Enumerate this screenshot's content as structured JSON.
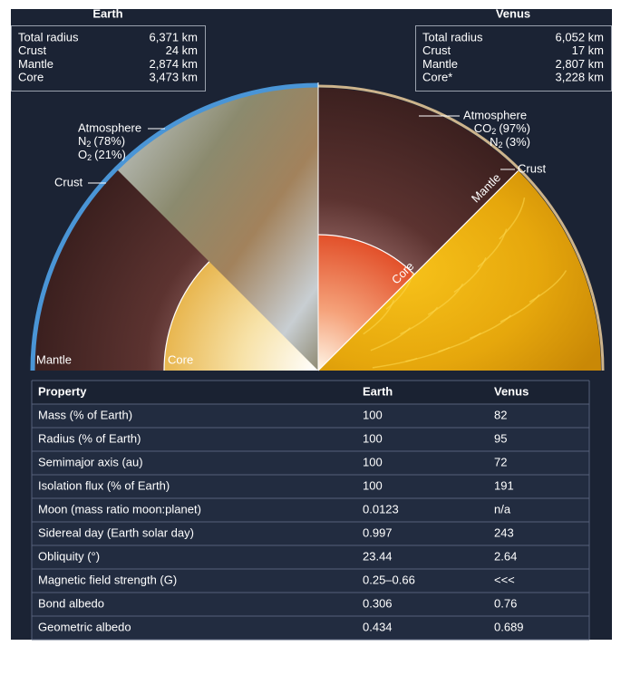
{
  "earth": {
    "title": "Earth",
    "stats": [
      [
        "Total radius",
        "6,371 km"
      ],
      [
        "Crust",
        "24 km"
      ],
      [
        "Mantle",
        "2,874 km"
      ],
      [
        "Core",
        "3,473 km"
      ]
    ],
    "labels": {
      "atmosphere": "Atmosphere",
      "gases": [
        {
          "formula": "N",
          "sub": "2",
          "share": "(78%)"
        },
        {
          "formula": "O",
          "sub": "2",
          "share": "(21%)"
        }
      ],
      "crust": "Crust",
      "mantle": "Mantle",
      "core": "Core"
    }
  },
  "venus": {
    "title": "Venus",
    "stats": [
      [
        "Total radius",
        "6,052 km"
      ],
      [
        "Crust",
        "17 km"
      ],
      [
        "Mantle",
        "2,807 km"
      ],
      [
        "Core*",
        "3,228 km"
      ]
    ],
    "labels": {
      "atmosphere": "Atmosphere",
      "gases": [
        {
          "formula": "CO",
          "sub": "2",
          "share": "(97%)"
        },
        {
          "formula": "N",
          "sub": "2",
          "share": "(3%)"
        }
      ],
      "crust": "Crust",
      "mantle": "Mantle",
      "core": "Core"
    }
  },
  "table": {
    "header": [
      "Property",
      "Earth",
      "Venus"
    ],
    "rows": [
      [
        "Mass (% of Earth)",
        "100",
        "82"
      ],
      [
        "Radius (% of Earth)",
        "100",
        "95"
      ],
      [
        "Semimajor axis (au)",
        "100",
        "72"
      ],
      [
        "Isolation flux (% of Earth)",
        "100",
        "191"
      ],
      [
        "Moon (mass ratio moon:planet)",
        "0.0123",
        "n/a"
      ],
      [
        "Sidereal day (Earth solar day)",
        "0.997",
        "243"
      ],
      [
        "Obliquity (°)",
        "23.44",
        "2.64"
      ],
      [
        "Magnetic field strength  (G)",
        "0.25–0.66",
        "<<<"
      ],
      [
        "Bond albedo",
        "0.306",
        "0.76"
      ],
      [
        "Geometric albedo",
        "0.434",
        "0.689"
      ]
    ]
  }
}
